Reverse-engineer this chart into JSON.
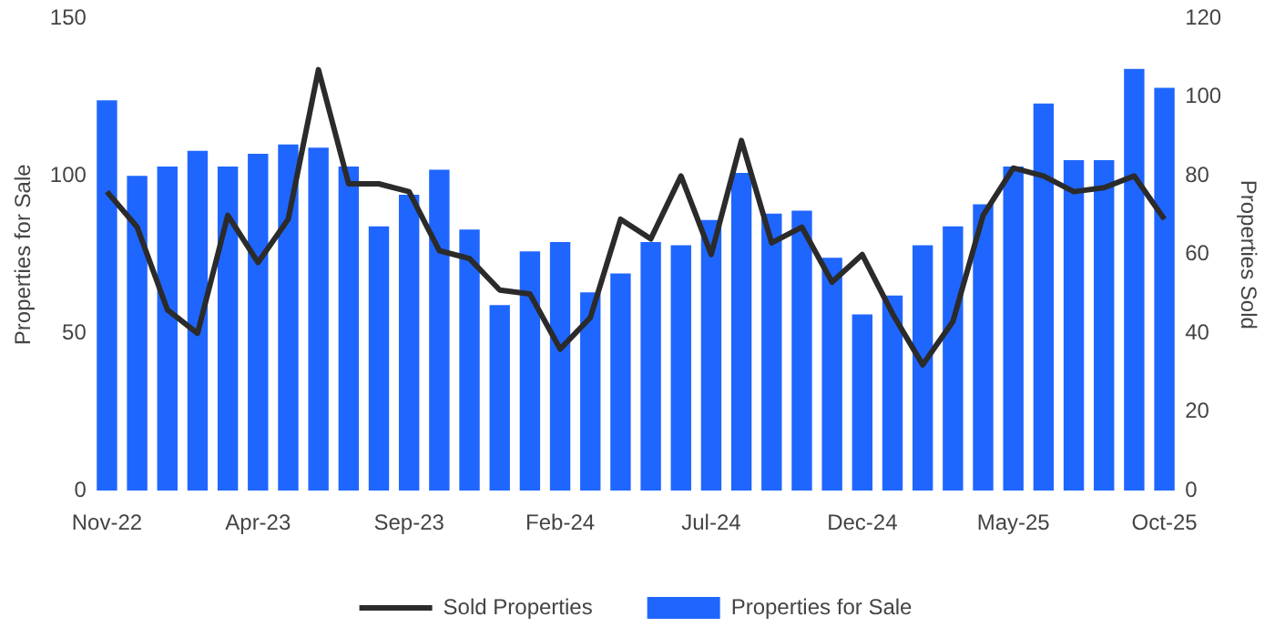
{
  "chart_data": {
    "type": "bar",
    "ylabel": "Properties for Sale",
    "y2label": "Properties Sold",
    "categories": [
      "Nov-22",
      null,
      null,
      null,
      null,
      "Apr-23",
      null,
      null,
      null,
      null,
      "Sep-23",
      null,
      null,
      null,
      null,
      "Feb-24",
      null,
      null,
      null,
      null,
      "Jul-24",
      null,
      null,
      null,
      null,
      "Dec-24",
      null,
      null,
      null,
      null,
      "May-25",
      null,
      null,
      null,
      null,
      "Oct-25"
    ],
    "series": [
      {
        "name": "Sold Properties",
        "type": "line",
        "axis": "y2",
        "color": "#2b2b2b",
        "values": [
          76,
          67,
          46,
          40,
          70,
          58,
          69,
          107,
          78,
          78,
          76,
          61,
          59,
          51,
          50,
          36,
          44,
          69,
          64,
          80,
          60,
          89,
          63,
          67,
          53,
          60,
          45,
          32,
          43,
          70,
          82,
          80,
          76,
          77,
          80,
          69
        ]
      },
      {
        "name": "Properties for Sale",
        "color": "#1f66ff",
        "values": [
          124,
          100,
          103,
          108,
          103,
          107,
          110,
          109,
          103,
          84,
          94,
          102,
          83,
          59,
          76,
          79,
          63,
          69,
          79,
          78,
          86,
          101,
          88,
          89,
          74,
          56,
          62,
          78,
          84,
          91,
          103,
          123,
          105,
          105,
          134,
          128
        ]
      }
    ],
    "ylim": [
      0,
      150
    ],
    "yticks": [
      0,
      50,
      100,
      150
    ],
    "y2lim": [
      0,
      120
    ],
    "y2ticks": [
      0,
      20,
      40,
      60,
      80,
      100,
      120
    ],
    "grid": false,
    "legend": "bottom",
    "marker": "none",
    "line_style": "solid"
  }
}
